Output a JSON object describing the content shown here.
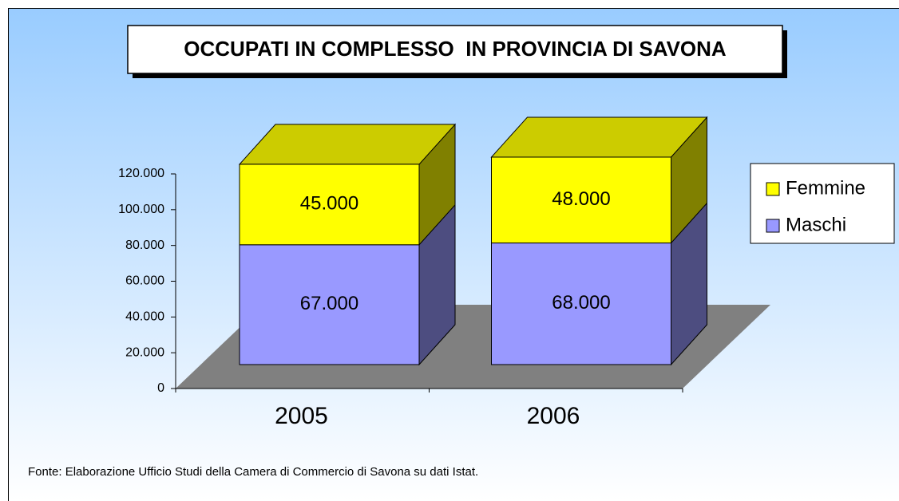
{
  "chart_data": {
    "type": "bar3d_stacked",
    "title": "OCCUPATI IN COMPLESSO  IN PROVINCIA DI SAVONA",
    "categories": [
      "2005",
      "2006"
    ],
    "series": [
      {
        "name": "Maschi",
        "color": "#9999ff",
        "values": [
          67000,
          68000
        ],
        "value_labels": [
          "67.000",
          "68.000"
        ]
      },
      {
        "name": "Femmine",
        "color": "#ffff00",
        "values": [
          45000,
          48000
        ],
        "value_labels": [
          "45.000",
          "48.000"
        ]
      }
    ],
    "ylim": [
      0,
      120000
    ],
    "yticks": [
      0,
      {
        "value": 20000,
        "label": "20.000"
      },
      {
        "value": 40000,
        "label": "40.000"
      },
      {
        "value": 60000,
        "label": "60.000"
      },
      {
        "value": 80000,
        "label": "80.000"
      },
      {
        "value": 100000,
        "label": "100.000"
      },
      {
        "value": 120000,
        "label": "120.000"
      }
    ],
    "legend": "right",
    "note": "Fonte: Elaborazione Ufficio Studi della Camera di Commercio di Savona su dati Istat."
  }
}
